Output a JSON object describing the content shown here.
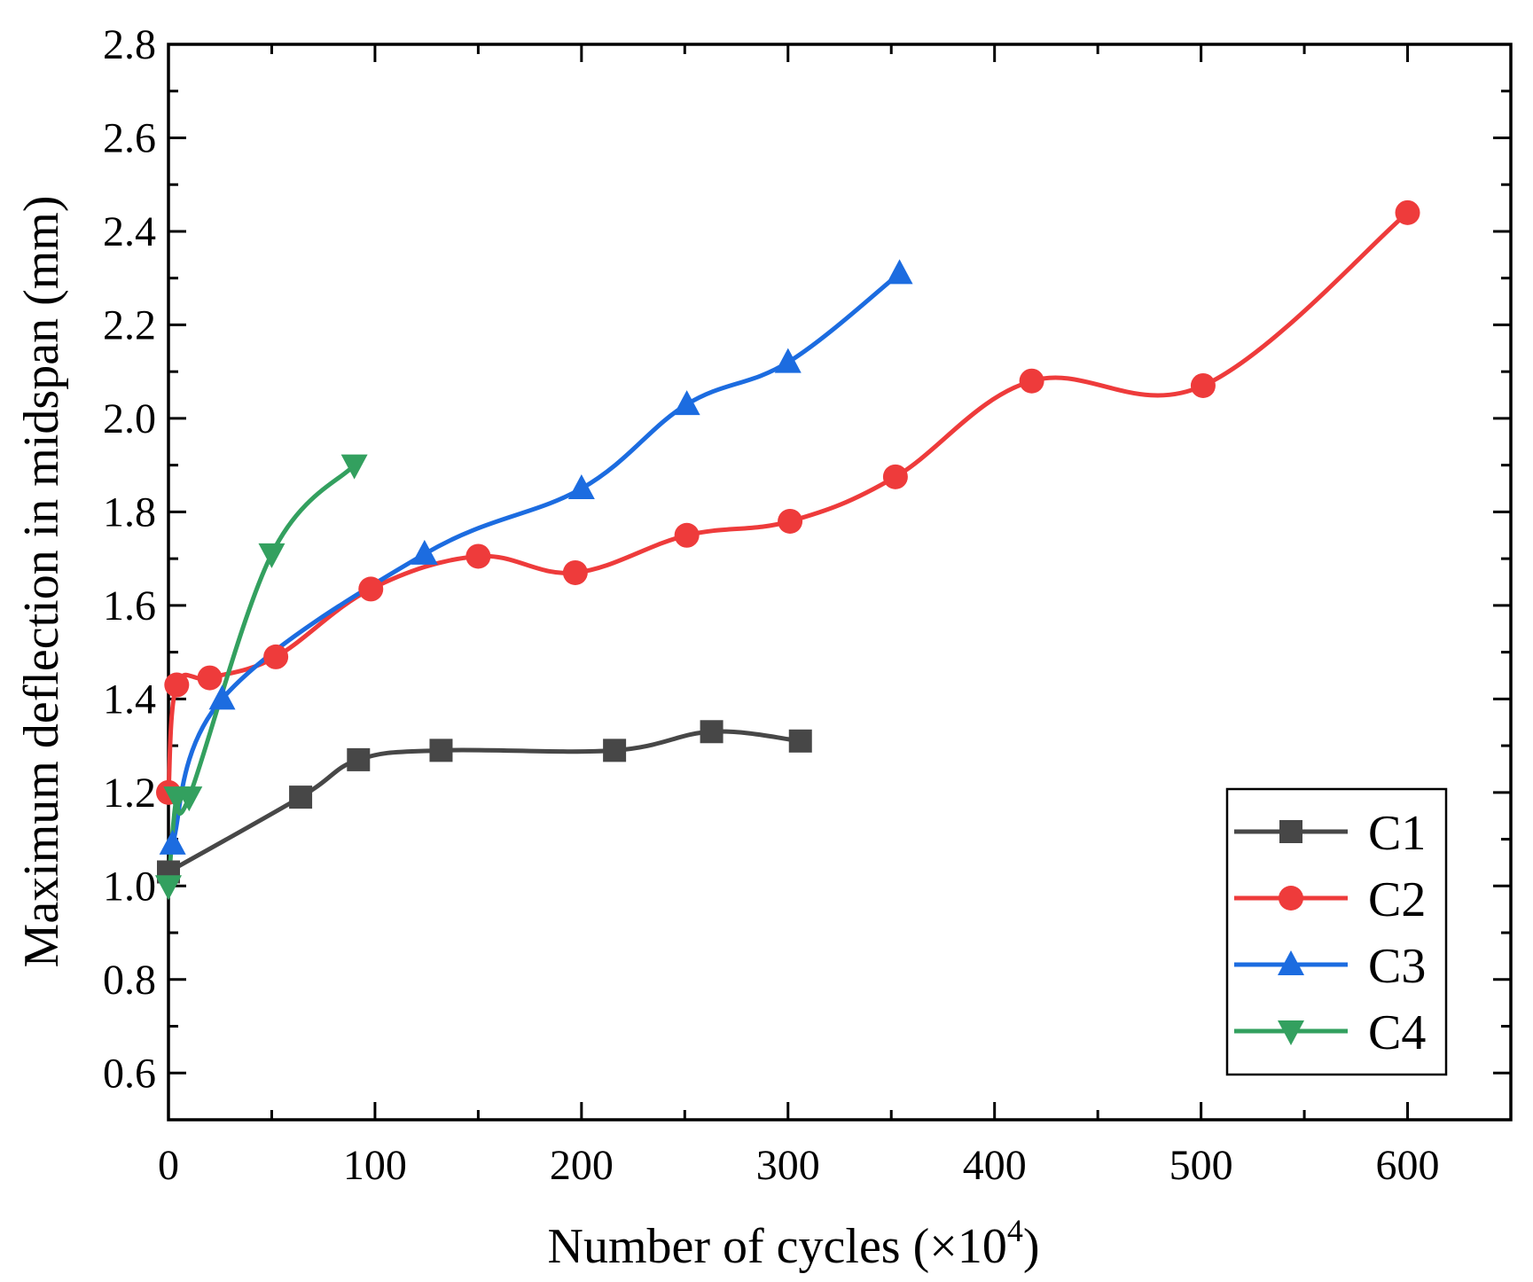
{
  "chart_data": {
    "type": "line",
    "title": "",
    "xlabel": "Number of cycles (×10",
    "xlabel_sup": "4",
    "xlabel_end": ")",
    "ylabel": "Maximum deflection in midspan (mm)",
    "xlim": [
      0,
      650
    ],
    "ylim": [
      0.5,
      2.8
    ],
    "xticks": [
      0,
      100,
      200,
      300,
      400,
      500,
      600
    ],
    "yticks": [
      0.6,
      0.8,
      1.0,
      1.2,
      1.4,
      1.6,
      1.8,
      2.0,
      2.2,
      2.4,
      2.6,
      2.8
    ],
    "ytick_labels": [
      "0.6",
      "0.8",
      "1.0",
      "1.2",
      "1.4",
      "1.6",
      "1.8",
      "2.0",
      "2.2",
      "2.4",
      "2.6",
      "2.8"
    ],
    "legend_position": "bottom-right",
    "grid": false,
    "series": [
      {
        "name": "C1",
        "color": "#474747",
        "marker": "square",
        "x": [
          0,
          64,
          92,
          132,
          216,
          263,
          306
        ],
        "y": [
          1.03,
          1.19,
          1.27,
          1.29,
          1.29,
          1.33,
          1.31
        ]
      },
      {
        "name": "C2",
        "color": "#ee3b3b",
        "marker": "circle",
        "x": [
          0,
          4,
          20,
          52,
          98,
          150,
          197,
          251,
          301,
          352,
          418,
          501,
          600
        ],
        "y": [
          1.2,
          1.43,
          1.445,
          1.49,
          1.635,
          1.705,
          1.67,
          1.75,
          1.78,
          1.875,
          2.08,
          2.07,
          2.44
        ]
      },
      {
        "name": "C3",
        "color": "#1c6ce0",
        "marker": "triangle-up",
        "x": [
          2,
          26,
          124,
          200,
          251,
          300,
          354
        ],
        "y": [
          1.09,
          1.4,
          1.71,
          1.85,
          2.03,
          2.12,
          2.31
        ]
      },
      {
        "name": "C4",
        "color": "#33a05f",
        "marker": "triangle-down",
        "x": [
          0,
          4,
          10,
          50,
          90
        ],
        "y": [
          1.0,
          1.19,
          1.19,
          1.71,
          1.9
        ]
      }
    ]
  }
}
